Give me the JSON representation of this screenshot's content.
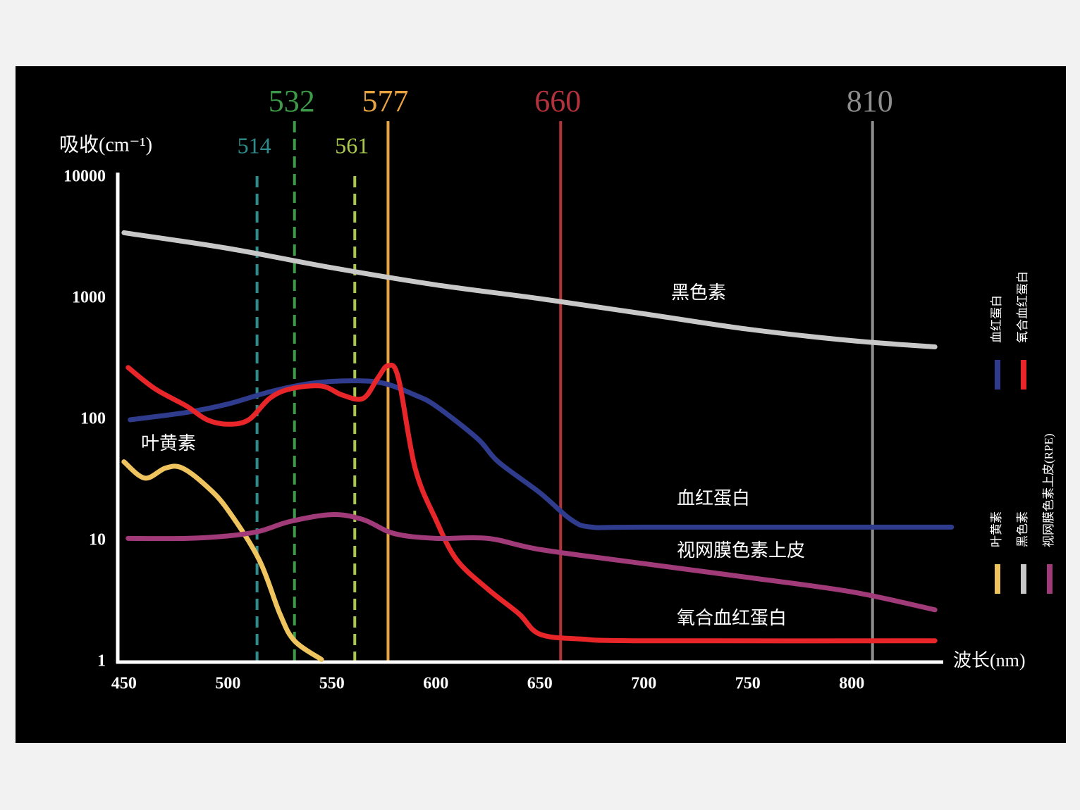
{
  "chart_data": {
    "type": "line",
    "log_y": true,
    "y_label": "吸收(cm⁻¹)",
    "x_label": "波长(nm)",
    "xlim": [
      447,
      844
    ],
    "xticks": [
      450,
      500,
      550,
      600,
      650,
      700,
      750,
      800
    ],
    "ylim": [
      1,
      10000
    ],
    "yticks": [
      1,
      10,
      100,
      1000,
      10000
    ],
    "lasers": [
      {
        "value": 514,
        "color": "#2f8c8c",
        "dashed": true
      },
      {
        "value": 532,
        "color": "#3c9a48",
        "dashed": true
      },
      {
        "value": 561,
        "color": "#a9c84c",
        "dashed": true
      },
      {
        "value": 577,
        "color": "#e9a442",
        "dashed": false
      },
      {
        "value": 660,
        "color": "#b3323c",
        "dashed": false
      },
      {
        "value": 810,
        "color": "#8e8e8e",
        "dashed": false
      }
    ],
    "series": [
      {
        "name": "血红蛋白",
        "label": "血红蛋白",
        "color": "#2f3b8c",
        "x": [
          453,
          480,
          500,
          520,
          540,
          560,
          575,
          590,
          600,
          620,
          630,
          650,
          665,
          675,
          700,
          848
        ],
        "values": [
          100,
          115,
          135,
          170,
          200,
          210,
          200,
          160,
          130,
          70,
          45,
          25,
          15,
          13,
          13,
          13
        ]
      },
      {
        "name": "氧合血红蛋白",
        "label": "氧合血红蛋白",
        "color": "#e8262a",
        "x": [
          452,
          465,
          480,
          490,
          500,
          510,
          520,
          530,
          545,
          555,
          565,
          572,
          577,
          582,
          590,
          600,
          610,
          625,
          640,
          650,
          670,
          700,
          840
        ],
        "values": [
          270,
          180,
          130,
          100,
          92,
          100,
          150,
          180,
          190,
          160,
          150,
          220,
          280,
          220,
          40,
          15,
          7,
          4,
          2.5,
          1.7,
          1.55,
          1.5,
          1.5
        ]
      },
      {
        "name": "叶黄素",
        "label": "叶黄素",
        "color": "#efc45e",
        "x": [
          450,
          460,
          470,
          478,
          490,
          500,
          515,
          525,
          532,
          545
        ],
        "values": [
          45,
          33,
          40,
          40,
          28,
          18,
          7,
          2.5,
          1.5,
          1.05
        ]
      },
      {
        "name": "黑色素",
        "label": "黑色素",
        "color": "#c8c8c8",
        "x": [
          450,
          500,
          550,
          600,
          650,
          700,
          750,
          800,
          840
        ],
        "values": [
          3500,
          2600,
          1800,
          1300,
          1000,
          750,
          560,
          450,
          400
        ]
      },
      {
        "name": "视网膜色素上皮(RPE)",
        "label": "视网膜色素上皮",
        "color": "#a03a78",
        "x": [
          452,
          480,
          500,
          515,
          530,
          550,
          565,
          580,
          600,
          625,
          650,
          700,
          750,
          800,
          840
        ],
        "values": [
          10.5,
          10.5,
          11,
          12,
          14.5,
          16.5,
          15,
          11.5,
          10.5,
          10.5,
          8.5,
          6.5,
          5,
          3.8,
          2.7
        ]
      }
    ]
  }
}
